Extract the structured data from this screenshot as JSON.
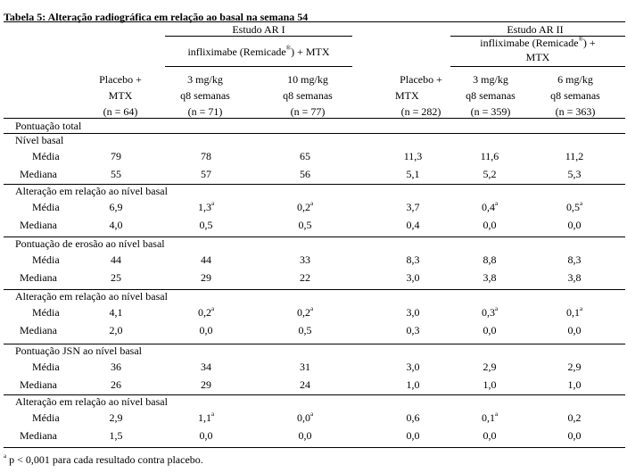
{
  "title": "Tabela 5: Alteração radiográfica em relação ao basal na semana 54",
  "header": {
    "study1": "Estudo AR I",
    "study2": "Estudo AR II",
    "infl1": "infliximabe (Remicade®) + MTX",
    "infl2_line1": "infliximabe (Remicade®) +",
    "infl2_line2": "MTX",
    "plac_line1": "Placebo +",
    "plac_line2": "MTX",
    "s1_pl_n": "(n = 64)",
    "s1_3_dose": "3 mg/kg",
    "s1_3_freq": "q8 semanas",
    "s1_3_n": "(n = 71)",
    "s1_10_dose": "10 mg/kg",
    "s1_10_freq": "q8 semanas",
    "s1_10_n": "(n = 77)",
    "s2_pl_n": "(n = 282)",
    "s2_3_dose": "3 mg/kg",
    "s2_3_freq": "q8 semanas",
    "s2_3_n": "(n = 359)",
    "s2_6_dose": "6 mg/kg",
    "s2_6_freq": "q8 semanas",
    "s2_6_n": "(n = 363)"
  },
  "total_label": "Pontuação total",
  "sections": [
    {
      "title": "Nível basal",
      "rows": [
        {
          "label": "Média",
          "v": [
            [
              "79",
              ""
            ],
            [
              "78",
              ""
            ],
            [
              "65",
              ""
            ],
            [
              "11,3",
              ""
            ],
            [
              "11,6",
              ""
            ],
            [
              "11,2",
              ""
            ]
          ]
        },
        {
          "label": "Mediana",
          "v": [
            [
              "55",
              ""
            ],
            [
              "57",
              ""
            ],
            [
              "56",
              ""
            ],
            [
              "5,1",
              ""
            ],
            [
              "5,2",
              ""
            ],
            [
              "5,3",
              ""
            ]
          ]
        }
      ]
    },
    {
      "title": "Alteração em relação ao nível basal",
      "rows": [
        {
          "label": "Média",
          "v": [
            [
              "6,9",
              ""
            ],
            [
              "1,3",
              "a"
            ],
            [
              "0,2",
              "a"
            ],
            [
              "3,7",
              ""
            ],
            [
              "0,4",
              "a"
            ],
            [
              "0,5",
              "a"
            ]
          ]
        },
        {
          "label": "Mediana",
          "v": [
            [
              "4,0",
              ""
            ],
            [
              "0,5",
              ""
            ],
            [
              "0,5",
              ""
            ],
            [
              "0,4",
              ""
            ],
            [
              "0,0",
              ""
            ],
            [
              "0,0",
              ""
            ]
          ]
        }
      ]
    },
    {
      "title": "Pontuação de erosão ao nível basal",
      "rows": [
        {
          "label": "Média",
          "v": [
            [
              "44",
              ""
            ],
            [
              "44",
              ""
            ],
            [
              "33",
              ""
            ],
            [
              "8,3",
              ""
            ],
            [
              "8,8",
              ""
            ],
            [
              "8,3",
              ""
            ]
          ]
        },
        {
          "label": "Mediana",
          "v": [
            [
              "25",
              ""
            ],
            [
              "29",
              ""
            ],
            [
              "22",
              ""
            ],
            [
              "3,0",
              ""
            ],
            [
              "3,8",
              ""
            ],
            [
              "3,8",
              ""
            ]
          ]
        }
      ]
    },
    {
      "title": "Alteração em relação ao nível basal",
      "rows": [
        {
          "label": "Média",
          "v": [
            [
              "4,1",
              ""
            ],
            [
              "0,2",
              "a"
            ],
            [
              "0,2",
              "a"
            ],
            [
              "3,0",
              ""
            ],
            [
              "0,3",
              "a"
            ],
            [
              "0,1",
              "a"
            ]
          ]
        },
        {
          "label": "Mediana",
          "v": [
            [
              "2,0",
              ""
            ],
            [
              "0,0",
              ""
            ],
            [
              "0,5",
              ""
            ],
            [
              "0,3",
              ""
            ],
            [
              "0,0",
              ""
            ],
            [
              "0,0",
              ""
            ]
          ]
        }
      ]
    },
    {
      "title": "Pontuação JSN ao nível basal",
      "rows": [
        {
          "label": "Média",
          "v": [
            [
              "36",
              ""
            ],
            [
              "34",
              ""
            ],
            [
              "31",
              ""
            ],
            [
              "3,0",
              ""
            ],
            [
              "2,9",
              ""
            ],
            [
              "2,9",
              ""
            ]
          ]
        },
        {
          "label": "Mediana",
          "v": [
            [
              "26",
              ""
            ],
            [
              "29",
              ""
            ],
            [
              "24",
              ""
            ],
            [
              "1,0",
              ""
            ],
            [
              "1,0",
              ""
            ],
            [
              "1,0",
              ""
            ]
          ]
        }
      ]
    },
    {
      "title": "Alteração em relação ao nível basal",
      "rows": [
        {
          "label": "Média",
          "v": [
            [
              "2,9",
              ""
            ],
            [
              "1,1",
              "a"
            ],
            [
              "0,0",
              "a"
            ],
            [
              "0,6",
              ""
            ],
            [
              "0,1",
              "a"
            ],
            [
              "0,2",
              ""
            ]
          ]
        },
        {
          "label": "Mediana",
          "v": [
            [
              "1,5",
              ""
            ],
            [
              "0,0",
              ""
            ],
            [
              "0,0",
              ""
            ],
            [
              "0,0",
              ""
            ],
            [
              "0,0",
              ""
            ],
            [
              "0,0",
              ""
            ]
          ]
        }
      ]
    }
  ],
  "footnote_mark": "a",
  "footnote": " p < 0,001 para cada resultado contra placebo."
}
